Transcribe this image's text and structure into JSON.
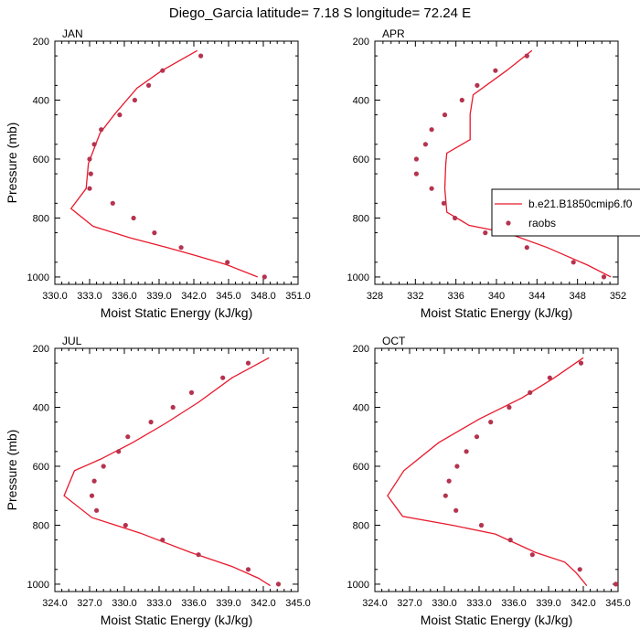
{
  "title": "Diego_Garcia  latitude= 7.18 S longitude= 72.24 E",
  "legend": {
    "entries": [
      {
        "label": "b.e21.B1850cmip6.f0",
        "kind": "line",
        "color": "#e8192c"
      },
      {
        "label": "raobs",
        "kind": "marker",
        "color": "#b5334e"
      }
    ]
  },
  "chart_data": [
    {
      "type": "line",
      "panel_label": "JAN",
      "xlabel": "Moist Static Energy (kJ/kg)",
      "ylabel": "Pressure (mb)",
      "xlim": [
        330.0,
        351.0
      ],
      "xticks": [
        330.0,
        333.0,
        336.0,
        339.0,
        342.0,
        345.0,
        348.0,
        351.0
      ],
      "xtick_labels": [
        "330.0",
        "333.0",
        "336.0",
        "339.0",
        "342.0",
        "345.0",
        "348.0",
        "351.0"
      ],
      "ylim": [
        1025,
        200
      ],
      "yticks": [
        200,
        400,
        600,
        800,
        1000
      ],
      "y_reversed": true,
      "series": [
        {
          "name": "b.e21.B1850cmip6.f0",
          "style": "line",
          "x": [
            342.3,
            339.2,
            337.1,
            335.2,
            333.9,
            332.9,
            332.7,
            331.4,
            333.3,
            336.5,
            339.7,
            342.3,
            344.8,
            347.5
          ],
          "y": [
            232,
            301,
            359,
            446,
            512,
            615,
            700,
            768,
            828,
            867,
            900,
            929,
            958,
            1000
          ]
        },
        {
          "name": "raobs",
          "style": "marker",
          "x": [
            342.6,
            339.3,
            338.1,
            336.9,
            335.6,
            334.0,
            333.4,
            333.0,
            333.1,
            333.0,
            335.0,
            336.8,
            338.6,
            340.9,
            344.9,
            348.1
          ],
          "y": [
            250,
            300,
            350,
            400,
            450,
            500,
            550,
            600,
            650,
            700,
            750,
            800,
            850,
            900,
            950,
            1000
          ]
        }
      ]
    },
    {
      "type": "line",
      "panel_label": "APR",
      "xlabel": "Moist Static Energy (kJ/kg)",
      "ylabel": "",
      "xlim": [
        328,
        352
      ],
      "xticks": [
        328,
        332,
        336,
        340,
        344,
        348,
        352
      ],
      "xtick_labels": [
        "328",
        "332",
        "336",
        "340",
        "344",
        "348",
        "352"
      ],
      "ylim": [
        1025,
        200
      ],
      "yticks": [
        200,
        400,
        600,
        800,
        1000
      ],
      "y_reversed": true,
      "series": [
        {
          "name": "b.e21.B1850cmip6.f0",
          "style": "line",
          "x": [
            343.5,
            341.0,
            337.7,
            337.4,
            337.4,
            335.1,
            335.0,
            334.9,
            335.1,
            337.3,
            341.0,
            345.0,
            349.0,
            351.3
          ],
          "y": [
            232,
            300,
            382,
            448,
            534,
            580,
            615,
            700,
            780,
            825,
            850,
            900,
            960,
            1000
          ]
        },
        {
          "name": "raobs",
          "style": "marker",
          "x": [
            343.0,
            339.9,
            338.1,
            336.6,
            334.9,
            333.6,
            333.0,
            332.1,
            332.1,
            333.6,
            334.8,
            335.9,
            338.9,
            343.0,
            347.6,
            350.6
          ],
          "y": [
            250,
            300,
            350,
            400,
            450,
            500,
            550,
            600,
            650,
            700,
            750,
            800,
            850,
            900,
            950,
            1000
          ]
        }
      ]
    },
    {
      "type": "line",
      "panel_label": "JUL",
      "xlabel": "Moist Static Energy (kJ/kg)",
      "ylabel": "Pressure (mb)",
      "xlim": [
        324.0,
        345.0
      ],
      "xticks": [
        324.0,
        327.0,
        330.0,
        333.0,
        336.0,
        339.0,
        342.0,
        345.0
      ],
      "xtick_labels": [
        "324.0",
        "327.0",
        "330.0",
        "333.0",
        "336.0",
        "339.0",
        "342.0",
        "345.0"
      ],
      "ylim": [
        1025,
        200
      ],
      "yticks": [
        200,
        400,
        600,
        800,
        1000
      ],
      "y_reversed": true,
      "series": [
        {
          "name": "b.e21.B1850cmip6.f0",
          "style": "line",
          "x": [
            342.5,
            339.3,
            336.4,
            333.5,
            330.7,
            328.0,
            325.7,
            324.8,
            327.2,
            331.4,
            335.7,
            339.3,
            341.6,
            342.6
          ],
          "y": [
            232,
            300,
            383,
            456,
            520,
            575,
            615,
            700,
            774,
            827,
            892,
            940,
            980,
            1005
          ]
        },
        {
          "name": "raobs",
          "style": "marker",
          "x": [
            340.7,
            338.5,
            335.8,
            334.2,
            332.3,
            330.3,
            329.5,
            328.2,
            327.4,
            327.2,
            327.6,
            330.1,
            333.3,
            336.4,
            340.7,
            343.3
          ],
          "y": [
            250,
            300,
            350,
            400,
            450,
            500,
            550,
            600,
            650,
            700,
            750,
            800,
            850,
            900,
            950,
            1000
          ]
        }
      ]
    },
    {
      "type": "line",
      "panel_label": "OCT",
      "xlabel": "Moist Static Energy (kJ/kg)",
      "ylabel": "",
      "xlim": [
        324.0,
        345.0
      ],
      "xticks": [
        324.0,
        327.0,
        330.0,
        333.0,
        336.0,
        339.0,
        342.0,
        345.0
      ],
      "xtick_labels": [
        "324.0",
        "327.0",
        "330.0",
        "333.0",
        "336.0",
        "339.0",
        "342.0",
        "345.0"
      ],
      "ylim": [
        1025,
        200
      ],
      "yticks": [
        200,
        400,
        600,
        800,
        1000
      ],
      "y_reversed": true,
      "series": [
        {
          "name": "b.e21.B1850cmip6.f0",
          "style": "line",
          "x": [
            342.0,
            339.5,
            336.7,
            333.0,
            329.5,
            326.5,
            325.1,
            326.4,
            330.7,
            334.4,
            337.9,
            340.4,
            341.4,
            342.3
          ],
          "y": [
            232,
            300,
            368,
            440,
            520,
            615,
            700,
            770,
            800,
            830,
            893,
            925,
            962,
            1005
          ]
        },
        {
          "name": "raobs",
          "style": "marker",
          "x": [
            341.8,
            339.1,
            337.4,
            335.6,
            334.0,
            332.8,
            331.9,
            331.1,
            330.4,
            330.1,
            331.0,
            333.2,
            335.7,
            337.6,
            341.7,
            344.8
          ],
          "y": [
            250,
            300,
            350,
            400,
            450,
            500,
            550,
            600,
            650,
            700,
            750,
            800,
            850,
            900,
            950,
            1000
          ]
        }
      ]
    }
  ]
}
